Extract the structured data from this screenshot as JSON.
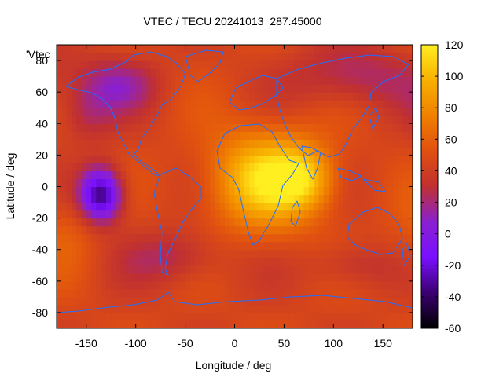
{
  "chart_data": {
    "type": "heatmap",
    "title": "VTEC / TECU 20241013_287.45000",
    "xlabel": "Longitude / deg",
    "ylabel": "Latitude / deg",
    "corner_label": "'Vtec_",
    "xlim": [
      -180,
      180
    ],
    "ylim": [
      -90,
      90
    ],
    "xticks": [
      -150,
      -100,
      -50,
      0,
      50,
      100,
      150
    ],
    "yticks": [
      -80,
      -60,
      -40,
      -20,
      0,
      20,
      40,
      60,
      80
    ],
    "colorbar": {
      "range": [
        -60,
        120
      ],
      "ticks": [
        -60,
        -40,
        -20,
        0,
        20,
        40,
        60,
        80,
        100,
        120
      ],
      "palette": [
        "#000000",
        "#3a0070",
        "#7a10ff",
        "#8a20d0",
        "#c03030",
        "#e05010",
        "#f08000",
        "#f8b000",
        "#ffee20"
      ]
    },
    "field_features": [
      {
        "kind": "peak",
        "lon": 30,
        "lat": 5,
        "value": 110
      },
      {
        "kind": "peak",
        "lon": 70,
        "lat": 5,
        "value": 100
      },
      {
        "kind": "minimum",
        "lon": -135,
        "lat": -5,
        "value": -40
      },
      {
        "kind": "low",
        "lon": -60,
        "lat": -45,
        "value": 20
      },
      {
        "kind": "low",
        "lon": 120,
        "lat": -50,
        "value": 25
      },
      {
        "kind": "low",
        "lon": -120,
        "lat": 65,
        "value": 10
      },
      {
        "kind": "low",
        "lon": 120,
        "lat": 70,
        "value": 15
      }
    ],
    "coastlines": true
  }
}
